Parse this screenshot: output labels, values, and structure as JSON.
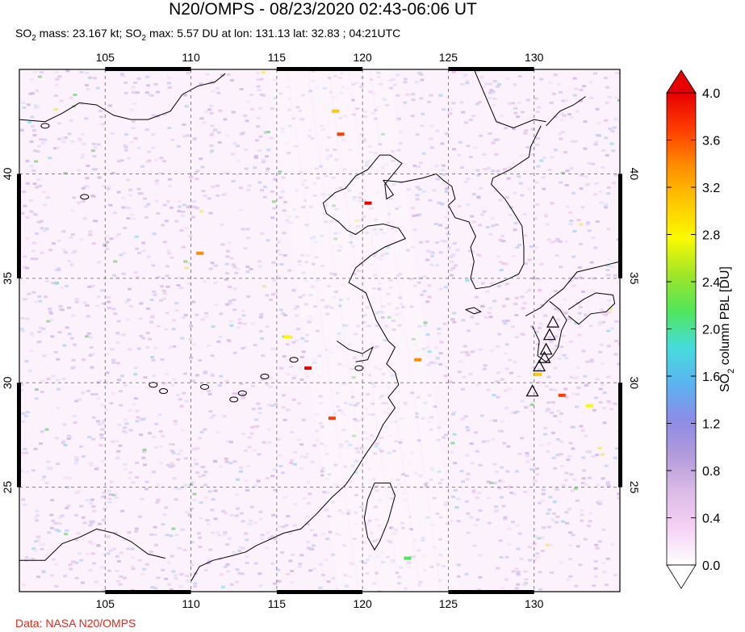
{
  "title": "N20/OMPS - 08/23/2020 02:43-06:06 UT",
  "subtitle": {
    "mass_prefix": "SO",
    "mass_sub": "2",
    "mass_text": " mass: 23.167 kt; SO",
    "max_sub": "2",
    "max_text": " max: 5.57 DU at lon: 131.13 lat: 32.83 ; 04:21UTC"
  },
  "credit": "Data: NASA N20/OMPS",
  "colorbar": {
    "label_prefix": "SO",
    "label_sub": "2",
    "label_suffix": " column PBL [DU]",
    "ticks": [
      "4.0",
      "3.6",
      "3.2",
      "2.8",
      "2.4",
      "2.0",
      "1.6",
      "1.2",
      "0.8",
      "0.4",
      "0.0"
    ],
    "colors": [
      "#ffffff",
      "#f5d2f5",
      "#dcbce6",
      "#b49bdc",
      "#8c8ce6",
      "#5ab4f0",
      "#46dcdc",
      "#50e65a",
      "#a0e628",
      "#fafa00",
      "#ffc800",
      "#ff8c00",
      "#ff3c00",
      "#e60000"
    ]
  },
  "chart_data": {
    "type": "heatmap",
    "title": "N20/OMPS - 08/23/2020 02:43-06:06 UT",
    "xlabel": "",
    "ylabel": "",
    "xlim": [
      100,
      135
    ],
    "ylim": [
      20,
      45
    ],
    "x_ticks": [
      105,
      110,
      115,
      120,
      125,
      130
    ],
    "y_ticks": [
      40,
      35,
      30,
      25
    ],
    "x_tick_labels": [
      "105",
      "110",
      "115",
      "120",
      "125",
      "130"
    ],
    "y_tick_labels": [
      "40",
      "35",
      "30",
      "25"
    ],
    "color_range": [
      0.0,
      4.0
    ],
    "grid": true,
    "so2_max": {
      "value": 5.57,
      "lon": 131.13,
      "lat": 32.83
    },
    "volcanoes": [
      {
        "lon": 131.1,
        "lat": 32.9
      },
      {
        "lon": 130.9,
        "lat": 32.3
      },
      {
        "lon": 130.7,
        "lat": 31.6
      },
      {
        "lon": 130.6,
        "lat": 31.2
      },
      {
        "lon": 130.3,
        "lat": 30.8
      },
      {
        "lon": 129.9,
        "lat": 29.6
      }
    ],
    "hotspots": [
      {
        "lon": 118.7,
        "lat": 41.9,
        "value": 3.8
      },
      {
        "lon": 118.4,
        "lat": 43.0,
        "value": 3.2
      },
      {
        "lon": 120.3,
        "lat": 38.6,
        "value": 3.9
      },
      {
        "lon": 116.8,
        "lat": 30.7,
        "value": 3.9
      },
      {
        "lon": 123.2,
        "lat": 31.1,
        "value": 3.4
      },
      {
        "lon": 118.2,
        "lat": 28.3,
        "value": 3.6
      },
      {
        "lon": 130.2,
        "lat": 30.4,
        "value": 3.2
      },
      {
        "lon": 131.6,
        "lat": 29.4,
        "value": 3.6
      },
      {
        "lon": 133.2,
        "lat": 28.9,
        "value": 2.9
      },
      {
        "lon": 115.6,
        "lat": 32.2,
        "value": 2.7
      },
      {
        "lon": 110.5,
        "lat": 36.2,
        "value": 3.4
      },
      {
        "lon": 122.6,
        "lat": 21.6,
        "value": 2.0
      }
    ]
  }
}
